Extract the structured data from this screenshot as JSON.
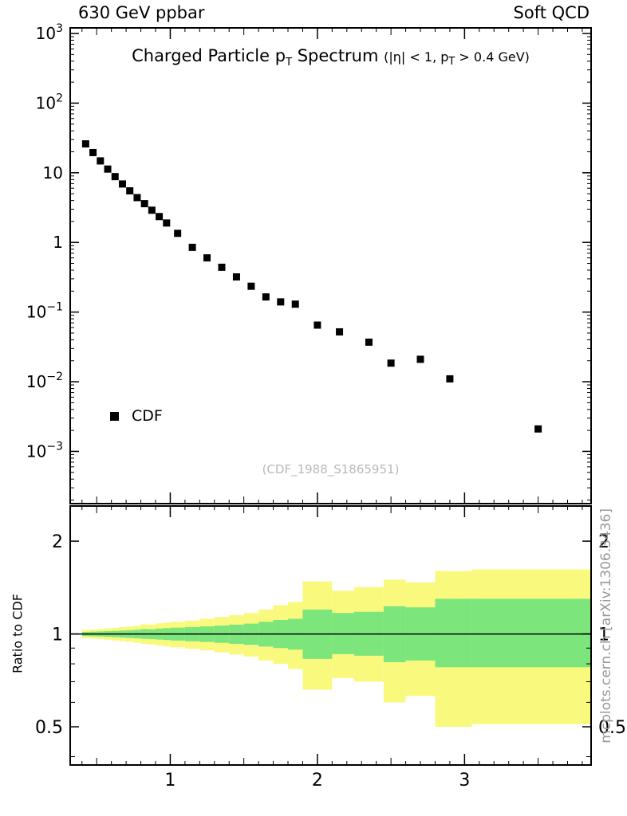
{
  "header": {
    "left": "630 GeV ppbar",
    "right": "Soft QCD"
  },
  "title": {
    "pre": "Charged Particle p",
    "sub": "T",
    "post": " Spectrum",
    "cut_pre": "(|η| < 1, p",
    "cut_sub": "T",
    "cut_post": " > 0.4 GeV)"
  },
  "legend": {
    "label": "CDF"
  },
  "watermark": "(CDF_1988_S1865951)",
  "credit": "mcplots.cern.ch [arXiv:1306.3436]",
  "ratio_ylabel": "Ratio to CDF",
  "colors": {
    "marker": "#000000",
    "band_outer": "#f9f97e",
    "band_inner": "#7ce67c",
    "frame": "#000000",
    "watermark": "#b9b9b9",
    "credit": "#999999"
  },
  "chart_data": [
    {
      "type": "scatter",
      "title": "Charged Particle pT Spectrum (|eta| < 1, pT > 0.4 GeV)",
      "xlim": [
        0.32,
        3.86
      ],
      "ylim_log10": [
        -3.75,
        3.08
      ],
      "xticks": [
        1,
        2,
        3
      ],
      "yticks": [
        {
          "v": 1000,
          "base": "10",
          "exp": "3"
        },
        {
          "v": 100,
          "base": "10",
          "exp": "2"
        },
        {
          "v": 10,
          "base": "10",
          "exp": ""
        },
        {
          "v": 1,
          "base": "1",
          "exp": ""
        },
        {
          "v": 0.1,
          "base": "10",
          "exp": "−1"
        },
        {
          "v": 0.01,
          "base": "10",
          "exp": "−2"
        },
        {
          "v": 0.001,
          "base": "10",
          "exp": "−3"
        }
      ],
      "series": [
        {
          "name": "CDF",
          "marker": "filled-square",
          "x": [
            0.425,
            0.475,
            0.525,
            0.575,
            0.625,
            0.675,
            0.725,
            0.775,
            0.825,
            0.875,
            0.925,
            0.975,
            1.05,
            1.15,
            1.25,
            1.35,
            1.45,
            1.55,
            1.65,
            1.75,
            1.85,
            2.0,
            2.15,
            2.35,
            2.5,
            2.7,
            2.9,
            3.5
          ],
          "y": [
            26,
            19.5,
            14.8,
            11.3,
            8.8,
            6.9,
            5.5,
            4.4,
            3.6,
            2.9,
            2.35,
            1.9,
            1.35,
            0.85,
            0.6,
            0.44,
            0.32,
            0.235,
            0.165,
            0.14,
            0.13,
            0.065,
            0.052,
            0.037,
            0.0185,
            0.021,
            0.011,
            0.0021
          ]
        }
      ]
    },
    {
      "type": "ratio-band",
      "ylabel": "Ratio to CDF",
      "xlim": [
        0.32,
        3.86
      ],
      "ylim_log10": [
        -0.425,
        0.415
      ],
      "yticks": [
        0.5,
        1,
        2
      ],
      "yminor": [
        0.4,
        0.6,
        0.7,
        0.8,
        0.9
      ],
      "refline": 1,
      "bins": [
        {
          "x0": 0.4,
          "x1": 0.45,
          "o": [
            0.97,
            1.03
          ],
          "i": [
            0.985,
            1.015
          ]
        },
        {
          "x0": 0.45,
          "x1": 0.5,
          "o": [
            0.966,
            1.034
          ],
          "i": [
            0.983,
            1.017
          ]
        },
        {
          "x0": 0.5,
          "x1": 0.55,
          "o": [
            0.962,
            1.038
          ],
          "i": [
            0.981,
            1.019
          ]
        },
        {
          "x0": 0.55,
          "x1": 0.6,
          "o": [
            0.958,
            1.042
          ],
          "i": [
            0.979,
            1.021
          ]
        },
        {
          "x0": 0.6,
          "x1": 0.65,
          "o": [
            0.953,
            1.047
          ],
          "i": [
            0.977,
            1.023
          ]
        },
        {
          "x0": 0.65,
          "x1": 0.7,
          "o": [
            0.948,
            1.052
          ],
          "i": [
            0.974,
            1.026
          ]
        },
        {
          "x0": 0.7,
          "x1": 0.75,
          "o": [
            0.943,
            1.057
          ],
          "i": [
            0.971,
            1.029
          ]
        },
        {
          "x0": 0.75,
          "x1": 0.8,
          "o": [
            0.937,
            1.063
          ],
          "i": [
            0.968,
            1.032
          ]
        },
        {
          "x0": 0.8,
          "x1": 0.85,
          "o": [
            0.928,
            1.075
          ],
          "i": [
            0.964,
            1.037
          ]
        },
        {
          "x0": 0.85,
          "x1": 0.9,
          "o": [
            0.925,
            1.072
          ],
          "i": [
            0.962,
            1.036
          ]
        },
        {
          "x0": 0.9,
          "x1": 0.95,
          "o": [
            0.918,
            1.082
          ],
          "i": [
            0.959,
            1.041
          ]
        },
        {
          "x0": 0.95,
          "x1": 1.0,
          "o": [
            0.912,
            1.088
          ],
          "i": [
            0.956,
            1.044
          ]
        },
        {
          "x0": 1.0,
          "x1": 1.1,
          "o": [
            0.905,
            1.095
          ],
          "i": [
            0.952,
            1.048
          ]
        },
        {
          "x0": 1.1,
          "x1": 1.2,
          "o": [
            0.895,
            1.105
          ],
          "i": [
            0.947,
            1.053
          ]
        },
        {
          "x0": 1.2,
          "x1": 1.3,
          "o": [
            0.885,
            1.12
          ],
          "i": [
            0.942,
            1.058
          ]
        },
        {
          "x0": 1.3,
          "x1": 1.4,
          "o": [
            0.872,
            1.135
          ],
          "i": [
            0.936,
            1.065
          ]
        },
        {
          "x0": 1.4,
          "x1": 1.5,
          "o": [
            0.858,
            1.15
          ],
          "i": [
            0.929,
            1.072
          ]
        },
        {
          "x0": 1.5,
          "x1": 1.6,
          "o": [
            0.845,
            1.17
          ],
          "i": [
            0.922,
            1.08
          ]
        },
        {
          "x0": 1.6,
          "x1": 1.7,
          "o": [
            0.82,
            1.2
          ],
          "i": [
            0.91,
            1.095
          ]
        },
        {
          "x0": 1.7,
          "x1": 1.8,
          "o": [
            0.8,
            1.24
          ],
          "i": [
            0.9,
            1.11
          ]
        },
        {
          "x0": 1.8,
          "x1": 1.9,
          "o": [
            0.77,
            1.27
          ],
          "i": [
            0.89,
            1.12
          ]
        },
        {
          "x0": 1.9,
          "x1": 2.1,
          "o": [
            0.66,
            1.48
          ],
          "i": [
            0.83,
            1.2
          ]
        },
        {
          "x0": 2.1,
          "x1": 2.25,
          "o": [
            0.72,
            1.38
          ],
          "i": [
            0.86,
            1.17
          ]
        },
        {
          "x0": 2.25,
          "x1": 2.45,
          "o": [
            0.7,
            1.42
          ],
          "i": [
            0.85,
            1.18
          ]
        },
        {
          "x0": 2.45,
          "x1": 2.6,
          "o": [
            0.6,
            1.5
          ],
          "i": [
            0.81,
            1.23
          ]
        },
        {
          "x0": 2.6,
          "x1": 2.8,
          "o": [
            0.63,
            1.47
          ],
          "i": [
            0.82,
            1.22
          ]
        },
        {
          "x0": 2.8,
          "x1": 3.05,
          "o": [
            0.5,
            1.6
          ],
          "i": [
            0.78,
            1.3
          ]
        },
        {
          "x0": 3.05,
          "x1": 3.9,
          "o": [
            0.51,
            1.62
          ],
          "i": [
            0.78,
            1.3
          ]
        }
      ]
    }
  ]
}
